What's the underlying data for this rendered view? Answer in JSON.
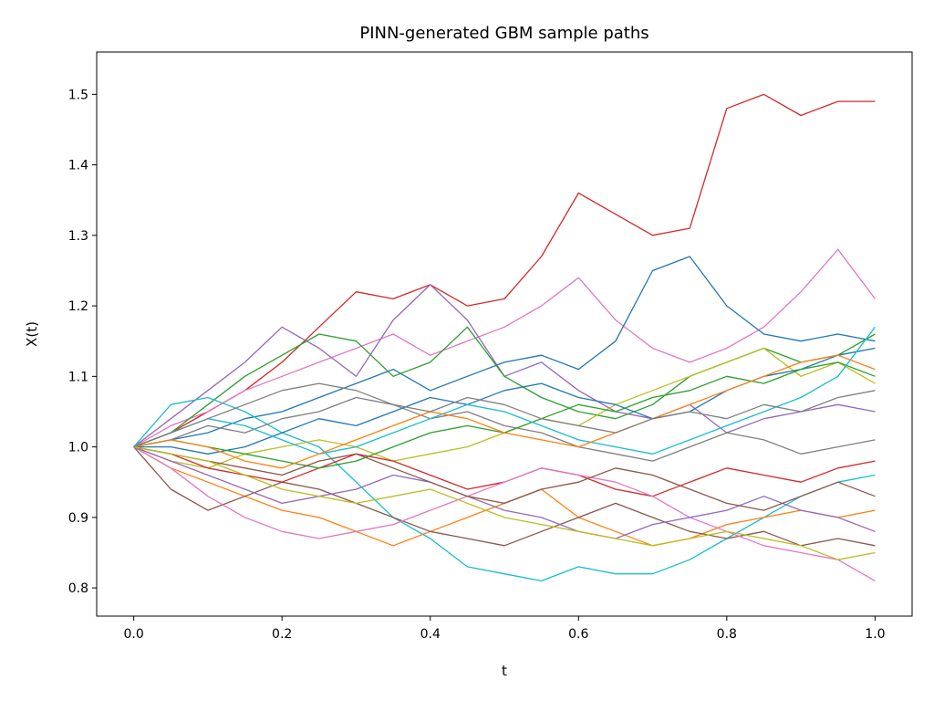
{
  "chart_data": {
    "type": "line",
    "title": "PINN-generated GBM sample paths",
    "xlabel": "t",
    "ylabel": "X(t)",
    "xlim": [
      -0.05,
      1.05
    ],
    "ylim": [
      0.76,
      1.56
    ],
    "xticks": [
      0.0,
      0.2,
      0.4,
      0.6,
      0.8,
      1.0
    ],
    "xtick_labels": [
      "0.0",
      "0.2",
      "0.4",
      "0.6",
      "0.8",
      "1.0"
    ],
    "yticks": [
      0.8,
      0.9,
      1.0,
      1.1,
      1.2,
      1.3,
      1.4,
      1.5
    ],
    "ytick_labels": [
      "0.8",
      "0.9",
      "1.0",
      "1.1",
      "1.2",
      "1.3",
      "1.4",
      "1.5"
    ],
    "grid": false,
    "legend": "none",
    "x": [
      0,
      0.05,
      0.1,
      0.15,
      0.2,
      0.25,
      0.3,
      0.35,
      0.4,
      0.45,
      0.5,
      0.55,
      0.6,
      0.65,
      0.7,
      0.75,
      0.8,
      0.85,
      0.9,
      0.95,
      1.0
    ],
    "series": [
      {
        "color": "#d62728",
        "values": [
          1.0,
          1.02,
          1.05,
          1.08,
          1.12,
          1.17,
          1.22,
          1.21,
          1.23,
          1.2,
          1.21,
          1.27,
          1.36,
          1.33,
          1.3,
          1.31,
          1.48,
          1.5,
          1.47,
          1.49,
          1.49
        ]
      },
      {
        "color": "#e377c2",
        "values": [
          1.0,
          1.03,
          1.05,
          1.08,
          1.1,
          1.12,
          1.14,
          1.16,
          1.13,
          1.15,
          1.17,
          1.2,
          1.24,
          1.18,
          1.14,
          1.12,
          1.14,
          1.17,
          1.22,
          1.28,
          1.21
        ]
      },
      {
        "color": "#1f77b4",
        "values": [
          1.0,
          1.01,
          1.02,
          1.04,
          1.05,
          1.07,
          1.09,
          1.11,
          1.08,
          1.1,
          1.12,
          1.13,
          1.11,
          1.15,
          1.25,
          1.27,
          1.2,
          1.16,
          1.15,
          1.16,
          1.15
        ]
      },
      {
        "color": "#9467bd",
        "values": [
          1.0,
          1.04,
          1.08,
          1.12,
          1.17,
          1.14,
          1.1,
          1.18,
          1.23,
          1.18,
          1.1,
          1.12,
          1.08,
          1.05,
          1.04,
          1.06,
          1.02,
          1.04,
          1.05,
          1.06,
          1.05
        ]
      },
      {
        "color": "#2ca02c",
        "values": [
          1.0,
          1.02,
          1.06,
          1.1,
          1.13,
          1.16,
          1.15,
          1.1,
          1.12,
          1.17,
          1.1,
          1.07,
          1.05,
          1.04,
          1.06,
          1.1,
          1.12,
          1.14,
          1.12,
          1.13,
          1.16
        ]
      },
      {
        "color": "#17becf",
        "values": [
          1.0,
          1.06,
          1.07,
          1.05,
          1.02,
          1.0,
          0.95,
          0.9,
          0.87,
          0.83,
          0.82,
          0.81,
          0.83,
          0.82,
          0.82,
          0.84,
          0.87,
          0.9,
          0.93,
          0.95,
          0.96
        ]
      },
      {
        "color": "#ff7f0e",
        "values": [
          1.0,
          0.97,
          0.95,
          0.93,
          0.91,
          0.9,
          0.88,
          0.86,
          0.88,
          0.9,
          0.92,
          0.94,
          0.9,
          0.88,
          0.86,
          0.87,
          0.89,
          0.9,
          0.91,
          0.9,
          0.91
        ]
      },
      {
        "color": "#8c564b",
        "values": [
          1.0,
          0.94,
          0.91,
          0.93,
          0.95,
          0.94,
          0.92,
          0.9,
          0.88,
          0.87,
          0.86,
          0.88,
          0.9,
          0.92,
          0.9,
          0.88,
          0.87,
          0.88,
          0.86,
          0.87,
          0.86
        ]
      },
      {
        "color": "#bcbd22",
        "values": [
          1.0,
          0.98,
          0.97,
          0.99,
          1.0,
          1.01,
          1.0,
          0.98,
          0.99,
          1.0,
          1.02,
          1.04,
          1.03,
          1.06,
          1.08,
          1.1,
          1.12,
          1.14,
          1.1,
          1.12,
          1.09
        ]
      },
      {
        "color": "#7f7f7f",
        "values": [
          1.0,
          1.01,
          1.03,
          1.02,
          1.04,
          1.05,
          1.07,
          1.06,
          1.04,
          1.05,
          1.03,
          1.02,
          1.0,
          0.99,
          0.98,
          1.0,
          1.02,
          1.01,
          0.99,
          1.0,
          1.01
        ]
      },
      {
        "color": "#d62728",
        "values": [
          1.0,
          0.99,
          0.97,
          0.96,
          0.95,
          0.97,
          0.99,
          0.98,
          0.96,
          0.94,
          0.95,
          0.97,
          0.96,
          0.94,
          0.93,
          0.95,
          0.97,
          0.96,
          0.95,
          0.97,
          0.98
        ]
      },
      {
        "color": "#e377c2",
        "values": [
          1.0,
          0.97,
          0.93,
          0.9,
          0.88,
          0.87,
          0.88,
          0.89,
          0.91,
          0.93,
          0.95,
          0.97,
          0.96,
          0.95,
          0.93,
          0.9,
          0.88,
          0.86,
          0.85,
          0.84,
          0.81
        ]
      },
      {
        "color": "#1f77b4",
        "values": [
          1.0,
          1.0,
          0.99,
          1.0,
          1.02,
          1.04,
          1.03,
          1.05,
          1.07,
          1.06,
          1.08,
          1.09,
          1.07,
          1.06,
          1.04,
          1.05,
          1.08,
          1.1,
          1.11,
          1.13,
          1.14
        ]
      },
      {
        "color": "#9467bd",
        "values": [
          1.0,
          0.98,
          0.96,
          0.94,
          0.92,
          0.93,
          0.94,
          0.96,
          0.95,
          0.93,
          0.91,
          0.9,
          0.88,
          0.87,
          0.89,
          0.9,
          0.91,
          0.93,
          0.91,
          0.9,
          0.88
        ]
      },
      {
        "color": "#2ca02c",
        "values": [
          1.0,
          1.01,
          1.0,
          0.99,
          0.98,
          0.97,
          0.98,
          1.0,
          1.02,
          1.03,
          1.02,
          1.04,
          1.06,
          1.05,
          1.07,
          1.08,
          1.1,
          1.09,
          1.11,
          1.12,
          1.1
        ]
      },
      {
        "color": "#17becf",
        "values": [
          1.0,
          1.02,
          1.04,
          1.03,
          1.01,
          0.99,
          1.0,
          1.02,
          1.04,
          1.06,
          1.05,
          1.03,
          1.01,
          1.0,
          0.99,
          1.01,
          1.03,
          1.05,
          1.07,
          1.1,
          1.17
        ]
      },
      {
        "color": "#ff7f0e",
        "values": [
          1.0,
          1.01,
          1.0,
          0.98,
          0.97,
          0.99,
          1.01,
          1.03,
          1.05,
          1.04,
          1.02,
          1.01,
          1.0,
          1.02,
          1.04,
          1.06,
          1.08,
          1.1,
          1.12,
          1.13,
          1.11
        ]
      },
      {
        "color": "#8c564b",
        "values": [
          1.0,
          0.99,
          0.98,
          0.97,
          0.96,
          0.98,
          0.99,
          0.97,
          0.95,
          0.93,
          0.92,
          0.94,
          0.95,
          0.97,
          0.96,
          0.94,
          0.92,
          0.91,
          0.93,
          0.95,
          0.93
        ]
      },
      {
        "color": "#bcbd22",
        "values": [
          1.0,
          0.99,
          0.98,
          0.96,
          0.94,
          0.93,
          0.92,
          0.93,
          0.94,
          0.92,
          0.9,
          0.89,
          0.88,
          0.87,
          0.86,
          0.87,
          0.88,
          0.87,
          0.86,
          0.84,
          0.85
        ]
      },
      {
        "color": "#7f7f7f",
        "values": [
          1.0,
          1.02,
          1.04,
          1.06,
          1.08,
          1.09,
          1.08,
          1.06,
          1.05,
          1.07,
          1.06,
          1.04,
          1.03,
          1.02,
          1.04,
          1.05,
          1.04,
          1.06,
          1.05,
          1.07,
          1.08
        ]
      }
    ]
  }
}
